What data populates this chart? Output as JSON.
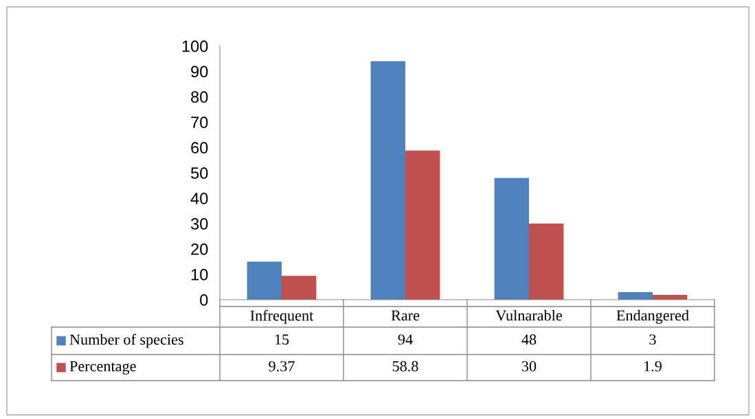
{
  "chart_data": {
    "type": "bar",
    "categories": [
      "Infrequent",
      "Rare",
      "Vulnarable",
      "Endangered"
    ],
    "series": [
      {
        "name": "Number of species",
        "color": "#4f81bd",
        "values": [
          15,
          94,
          48,
          3
        ]
      },
      {
        "name": "Percentage",
        "color": "#c0504d",
        "values": [
          9.37,
          58.8,
          30,
          1.9
        ]
      }
    ],
    "ylim": [
      0,
      100
    ],
    "yticks": [
      0,
      10,
      20,
      30,
      40,
      50,
      60,
      70,
      80,
      90,
      100
    ],
    "grid": false,
    "legend": "bottom left",
    "data_labels": true
  }
}
